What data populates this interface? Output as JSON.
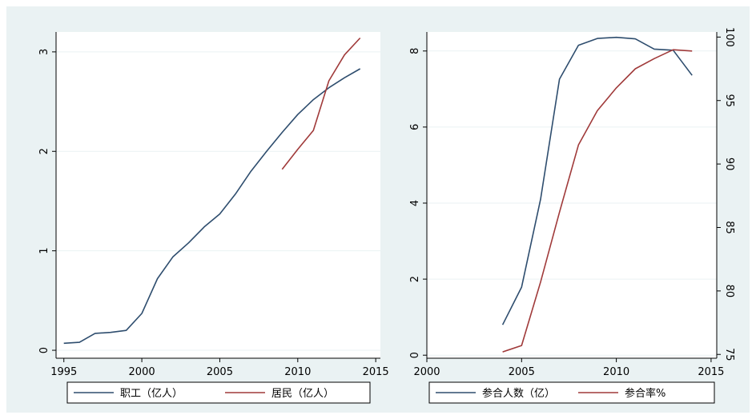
{
  "chart_data": [
    {
      "type": "line",
      "title": "",
      "xlabel": "",
      "ylabel": "",
      "xlim": [
        1994.5,
        2015.3
      ],
      "ylim": [
        -0.08,
        3.2
      ],
      "x_ticks": [
        1995,
        2000,
        2005,
        2010,
        2015
      ],
      "y_ticks": [
        0,
        1,
        2,
        3
      ],
      "grid": true,
      "legend_position": "bottom",
      "series": [
        {
          "name": "职工（亿人）",
          "color": "#2e4d6e",
          "x": [
            1995,
            1996,
            1997,
            1998,
            1999,
            2000,
            2001,
            2002,
            2003,
            2004,
            2005,
            2006,
            2007,
            2008,
            2009,
            2010,
            2011,
            2012,
            2013,
            2014
          ],
          "y": [
            0.07,
            0.08,
            0.17,
            0.18,
            0.2,
            0.37,
            0.72,
            0.94,
            1.08,
            1.24,
            1.37,
            1.57,
            1.8,
            2.0,
            2.19,
            2.37,
            2.52,
            2.64,
            2.74,
            2.83
          ]
        },
        {
          "name": "居民（亿人）",
          "color": "#a03a3a",
          "x": [
            2009,
            2010,
            2011,
            2012,
            2013,
            2014
          ],
          "y": [
            1.82,
            2.02,
            2.21,
            2.71,
            2.97,
            3.14
          ]
        }
      ]
    },
    {
      "type": "line",
      "title": "",
      "xlabel": "",
      "ylabel": "",
      "xlim": [
        2000,
        2015.3
      ],
      "ylim": [
        -0.08,
        8.5
      ],
      "y2lim": [
        74.7,
        100.4
      ],
      "x_ticks": [
        2000,
        2005,
        2010,
        2015
      ],
      "y_ticks": [
        0,
        2,
        4,
        6,
        8
      ],
      "y2_ticks": [
        75,
        80,
        85,
        90,
        95,
        100
      ],
      "grid": true,
      "legend_position": "bottom",
      "series": [
        {
          "name": "参合人数（亿）",
          "axis": "left",
          "color": "#2e4d6e",
          "x": [
            2004,
            2005,
            2006,
            2007,
            2008,
            2009,
            2010,
            2011,
            2012,
            2013,
            2014
          ],
          "y": [
            0.8,
            1.79,
            4.1,
            7.26,
            8.15,
            8.33,
            8.36,
            8.32,
            8.05,
            8.02,
            7.36
          ]
        },
        {
          "name": "参合率%",
          "axis": "right",
          "color": "#a03a3a",
          "x": [
            2004,
            2005,
            2006,
            2007,
            2008,
            2009,
            2010,
            2011,
            2012,
            2013,
            2014
          ],
          "y": [
            75.2,
            75.7,
            80.7,
            86.2,
            91.5,
            94.2,
            96.0,
            97.5,
            98.3,
            99.0,
            98.9
          ]
        }
      ]
    }
  ]
}
